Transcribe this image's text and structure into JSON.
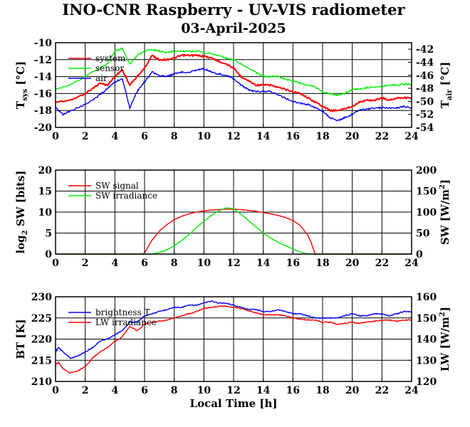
{
  "title": "INO-CNR Raspberry - UV-VIS radiometer",
  "subtitle": "03-April-2025",
  "colors": {
    "red": "#ff0000",
    "green": "#00ee00",
    "blue": "#0000ff"
  },
  "chart_data": [
    {
      "type": "line",
      "panel": "temperature",
      "xlim": [
        0,
        24
      ],
      "xticks": [
        "0",
        "2",
        "4",
        "6",
        "8",
        "10",
        "12",
        "14",
        "16",
        "18",
        "20",
        "22",
        "24"
      ],
      "ylim_left": [
        -20,
        -10
      ],
      "yticks_left": [
        "-10",
        "-12",
        "-14",
        "-16",
        "-18",
        "-20"
      ],
      "ylim_right": [
        -54,
        -41
      ],
      "yticks_right": [
        "-42",
        "-44",
        "-46",
        "-48",
        "-50",
        "-52",
        "-54"
      ],
      "ylabel_left": {
        "main": "T",
        "sub": "sys",
        "unit": "[°C]"
      },
      "ylabel_right": {
        "main": "T",
        "sub": "air",
        "unit": "[°C]"
      },
      "legend_placement": "top-left",
      "grid": true,
      "series": [
        {
          "name": "system",
          "color": "#ff0000",
          "axis": "left",
          "x": [
            0,
            1,
            2,
            3,
            3.5,
            4,
            4.5,
            5,
            5.5,
            6,
            6.5,
            7,
            7.5,
            8,
            8.5,
            9,
            9.5,
            10,
            10.5,
            11,
            11.5,
            12,
            12.5,
            13,
            13.5,
            14,
            14.5,
            15,
            15.5,
            16,
            16.5,
            17,
            17.5,
            18,
            18.5,
            19,
            19.5,
            20,
            20.5,
            21,
            21.5,
            22,
            22.5,
            23,
            23.5,
            24
          ],
          "values": [
            -17,
            -16.8,
            -16,
            -14.8,
            -15,
            -14,
            -13.2,
            -15,
            -14,
            -13,
            -11.5,
            -12,
            -12,
            -11.8,
            -11.5,
            -11.5,
            -11.5,
            -11.6,
            -11.8,
            -12.2,
            -12.5,
            -13,
            -14,
            -14.5,
            -15,
            -15,
            -15,
            -15.3,
            -15.5,
            -15.8,
            -16,
            -16.5,
            -17,
            -17.5,
            -18,
            -18,
            -17.8,
            -17.5,
            -17,
            -16.8,
            -16.8,
            -16.5,
            -16.8,
            -16.5,
            -16.5,
            -16.5
          ]
        },
        {
          "name": "sensor",
          "color": "#00ee00",
          "axis": "left",
          "x": [
            0,
            1,
            2,
            3,
            3.5,
            4,
            4.5,
            5,
            5.5,
            6,
            6.5,
            7,
            7.5,
            8,
            8.5,
            9,
            9.5,
            10,
            10.5,
            11,
            11.5,
            12,
            12.5,
            13,
            13.5,
            14,
            14.5,
            15,
            15.5,
            16,
            16.5,
            17,
            17.5,
            18,
            18.5,
            19,
            19.5,
            20,
            20.5,
            21,
            21.5,
            22,
            22.5,
            23,
            23.5,
            24
          ],
          "values": [
            -15.5,
            -15,
            -14,
            -13,
            -12.5,
            -11,
            -10.7,
            -12.5,
            -11.5,
            -11,
            -10.8,
            -11,
            -11.2,
            -11,
            -11,
            -11,
            -11,
            -11.2,
            -11.3,
            -11.5,
            -11.8,
            -12,
            -12.5,
            -13,
            -13.5,
            -14,
            -14,
            -14,
            -14.3,
            -14.5,
            -14.8,
            -15,
            -15.2,
            -15.8,
            -16,
            -16.2,
            -16,
            -15.5,
            -15.5,
            -15.3,
            -15.2,
            -15.2,
            -15,
            -15,
            -14.9,
            -14.9
          ]
        },
        {
          "name": "air",
          "color": "#0000ff",
          "axis": "right",
          "x": [
            0,
            0.5,
            1,
            2,
            3,
            3.5,
            4,
            4.5,
            5,
            5.5,
            6,
            6.5,
            7,
            7.5,
            8,
            8.5,
            9,
            9.5,
            10,
            10.5,
            11,
            11.5,
            12,
            12.5,
            13,
            13.5,
            14,
            14.5,
            15,
            15.5,
            16,
            16.5,
            17,
            17.5,
            18,
            18.5,
            19,
            19.5,
            20,
            20.5,
            21,
            21.5,
            22,
            22.5,
            23,
            23.5,
            24
          ],
          "values": [
            -51,
            -52,
            -51.5,
            -50.5,
            -49,
            -48,
            -47,
            -46.5,
            -51,
            -48.5,
            -47,
            -45.5,
            -46,
            -46.2,
            -45.8,
            -45.5,
            -45.5,
            -45.2,
            -45,
            -45.5,
            -45.8,
            -46,
            -46.5,
            -47.5,
            -48.2,
            -48.5,
            -48.5,
            -48.5,
            -49,
            -49.5,
            -50,
            -50.3,
            -50.5,
            -51,
            -51.5,
            -52.5,
            -53,
            -52.5,
            -52,
            -51.3,
            -51.2,
            -51,
            -51,
            -51,
            -51,
            -50.8,
            -51
          ]
        }
      ]
    },
    {
      "type": "line",
      "panel": "shortwave",
      "xlim": [
        0,
        24
      ],
      "xticks": [
        "0",
        "2",
        "4",
        "6",
        "8",
        "10",
        "12",
        "14",
        "16",
        "18",
        "20",
        "22",
        "24"
      ],
      "ylim_left": [
        0,
        20
      ],
      "yticks_left": [
        "20",
        "15",
        "10",
        "5",
        "0"
      ],
      "ylim_right": [
        0,
        200
      ],
      "yticks_right": [
        "200",
        "150",
        "100",
        "50",
        "0"
      ],
      "ylabel_left": {
        "main": "log",
        "sub": "2",
        "tail": " SW [bits]"
      },
      "ylabel_right": {
        "main": "SW [W/m",
        "sup": "2",
        "tail": "]"
      },
      "legend_placement": "top-left",
      "grid": true,
      "series": [
        {
          "name": "SW signal",
          "color": "#ff0000",
          "axis": "left",
          "x": [
            0,
            5.9,
            6,
            6.2,
            6.5,
            7,
            7.5,
            8,
            8.5,
            9,
            9.5,
            10,
            10.5,
            11,
            11.5,
            12,
            12.5,
            13,
            13.5,
            14,
            14.5,
            15,
            15.5,
            16,
            16.5,
            17,
            17.2,
            17.4,
            17.5,
            24
          ],
          "values": [
            0,
            0,
            0.3,
            1.5,
            3.3,
            5.5,
            7,
            8.2,
            9,
            9.6,
            10,
            10.3,
            10.5,
            10.6,
            10.7,
            10.7,
            10.6,
            10.4,
            10.2,
            9.9,
            9.6,
            9.2,
            8.7,
            8,
            6.8,
            4.5,
            3,
            1,
            0,
            0
          ]
        },
        {
          "name": "SW irradiance",
          "color": "#00ee00",
          "axis": "right",
          "x": [
            0,
            6.5,
            7,
            7.5,
            8,
            8.5,
            9,
            9.5,
            10,
            10.5,
            11,
            11.5,
            12,
            12.5,
            13,
            13.5,
            14,
            14.5,
            15,
            15.5,
            16,
            16.5,
            17,
            24
          ],
          "values": [
            0,
            0,
            4,
            10,
            20,
            32,
            47,
            63,
            78,
            92,
            103,
            110,
            108,
            95,
            80,
            65,
            50,
            38,
            28,
            20,
            12,
            5,
            0,
            0
          ]
        }
      ]
    },
    {
      "type": "line",
      "panel": "longwave",
      "xlim": [
        0,
        24
      ],
      "xticks": [
        "0",
        "2",
        "4",
        "6",
        "8",
        "10",
        "12",
        "14",
        "16",
        "18",
        "20",
        "22",
        "24"
      ],
      "xlabel": "Local Time [h]",
      "ylim_left": [
        210,
        230
      ],
      "yticks_left": [
        "230",
        "225",
        "220",
        "215",
        "210"
      ],
      "ylim_right": [
        120,
        160
      ],
      "yticks_right": [
        "160",
        "150",
        "140",
        "130",
        "120"
      ],
      "ylabel_left": {
        "main": "BT [K]"
      },
      "ylabel_right": {
        "main": "LW [W/m",
        "sup": "2",
        "tail": "]"
      },
      "legend_placement": "top-left",
      "grid": true,
      "series": [
        {
          "name": "brightness T",
          "color": "#0000ff",
          "axis": "left",
          "x": [
            0,
            0.2,
            0.5,
            1,
            1.5,
            2,
            2.5,
            3,
            3.5,
            4,
            4.5,
            5,
            5.5,
            6,
            6.5,
            7,
            7.5,
            8,
            8.5,
            9,
            9.5,
            10,
            10.5,
            11,
            11.5,
            12,
            12.5,
            13,
            13.5,
            14,
            14.5,
            15,
            15.5,
            16,
            16.5,
            17,
            17.5,
            18,
            18.5,
            19,
            19.5,
            20,
            20.5,
            21,
            21.5,
            22,
            22.5,
            23,
            23.5,
            24
          ],
          "values": [
            217,
            218,
            217,
            215.5,
            216,
            217,
            218,
            219.5,
            220,
            221,
            222,
            224,
            224,
            225.5,
            226,
            226.5,
            227,
            227.5,
            227.5,
            228,
            228,
            228.5,
            229,
            228.5,
            228.5,
            228,
            227.5,
            227,
            227,
            226.5,
            226.5,
            227,
            226.5,
            226,
            226,
            225.5,
            225,
            225,
            225,
            225,
            225.5,
            226,
            225.5,
            225.5,
            226,
            226,
            225.5,
            226,
            226.5,
            226.5
          ]
        },
        {
          "name": "LW irradiance",
          "color": "#ff0000",
          "axis": "right",
          "x": [
            0,
            0.2,
            0.5,
            1,
            1.5,
            2,
            2.5,
            3,
            3.5,
            4,
            4.5,
            5,
            5.5,
            6,
            6.5,
            7,
            7.5,
            8,
            8.5,
            9,
            9.5,
            10,
            10.5,
            11,
            11.5,
            12,
            12.5,
            13,
            13.5,
            14,
            14.5,
            15,
            15.5,
            16,
            16.5,
            17,
            17.5,
            18,
            18.5,
            19,
            19.5,
            20,
            20.5,
            21,
            21.5,
            22,
            22.5,
            23,
            23.5,
            24
          ],
          "values": [
            128,
            129,
            126,
            124,
            125,
            127,
            131,
            134,
            136,
            139,
            141,
            146,
            144,
            147,
            148,
            148.5,
            149,
            150,
            151,
            152,
            153,
            154.5,
            155,
            155.5,
            155.5,
            155,
            154.5,
            153.5,
            152.5,
            151.5,
            151.5,
            151.5,
            151,
            150,
            149.5,
            149,
            149,
            148,
            148,
            147,
            147.5,
            148,
            147.5,
            148,
            148.5,
            149,
            149,
            148.5,
            149,
            149
          ]
        }
      ]
    }
  ]
}
